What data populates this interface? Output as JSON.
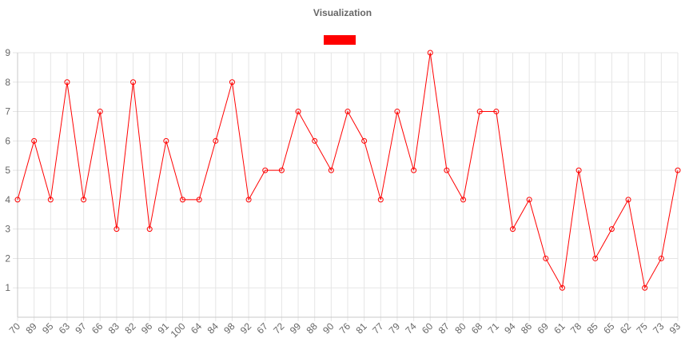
{
  "chart_data": {
    "type": "line",
    "title": "Visualization",
    "legend": {
      "position": "top",
      "series_color": "#ff0000",
      "label": ""
    },
    "xlabel": "",
    "ylabel": "",
    "ylim": [
      0,
      9
    ],
    "y_ticks": [
      1,
      2,
      3,
      4,
      5,
      6,
      7,
      8,
      9
    ],
    "grid": true,
    "categories": [
      "70",
      "89",
      "95",
      "63",
      "97",
      "66",
      "83",
      "82",
      "96",
      "91",
      "100",
      "64",
      "84",
      "98",
      "92",
      "67",
      "72",
      "99",
      "88",
      "90",
      "76",
      "81",
      "77",
      "79",
      "74",
      "60",
      "87",
      "80",
      "68",
      "71",
      "94",
      "86",
      "69",
      "61",
      "78",
      "85",
      "65",
      "62",
      "75",
      "73",
      "93"
    ],
    "series": [
      {
        "color": "#ff0000",
        "values": [
          4,
          6,
          4,
          8,
          4,
          7,
          3,
          8,
          3,
          6,
          4,
          4,
          6,
          8,
          4,
          5,
          5,
          7,
          6,
          5,
          7,
          6,
          4,
          7,
          5,
          9,
          5,
          4,
          7,
          7,
          3,
          4,
          2,
          1,
          5,
          2,
          3,
          4,
          1,
          2,
          5
        ]
      }
    ]
  }
}
